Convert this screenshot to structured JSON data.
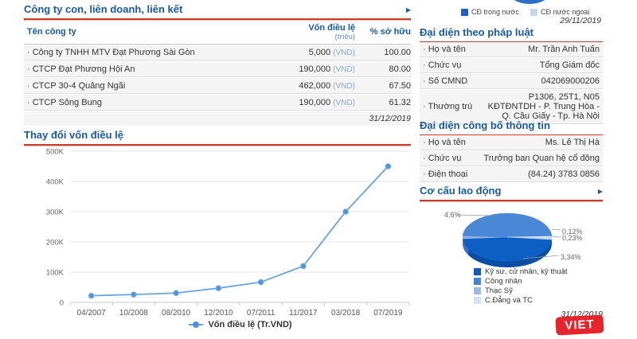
{
  "theme": {
    "accent_blue": "#1a5a9c",
    "accent_red": "#cf3b2a",
    "line_blue": "#68a3dd",
    "row_bg": "#f4f4f4"
  },
  "subsidiaries": {
    "title": "Công ty con, liên doanh, liên kết",
    "columns": {
      "name": "Tên công ty",
      "capital": "Vốn điều lệ",
      "capital_unit": "(triệu)",
      "ownership": "% sở hữu"
    },
    "rows": [
      {
        "name": "Công ty TNHH MTV Đạt Phương Sài Gòn",
        "capital": "5,000",
        "currency": "(VND)",
        "ownership": "100.00"
      },
      {
        "name": "CTCP Đạt Phương Hội An",
        "capital": "190,000",
        "currency": "(VND)",
        "ownership": "80.00"
      },
      {
        "name": "CTCP 30-4 Quảng Ngãi",
        "capital": "462,000",
        "currency": "(VND)",
        "ownership": "67.50"
      },
      {
        "name": "CTCP Sông Bung",
        "capital": "190,000",
        "currency": "(VND)",
        "ownership": "61.32"
      }
    ],
    "as_of_date": "31/12/2019"
  },
  "ownership_legend": {
    "domestic": "CĐ trong nước",
    "foreign": "CĐ nước ngoài",
    "date": "29/11/2019",
    "colors": {
      "domestic": "#1d5fc2",
      "foreign": "#c7d9f0"
    }
  },
  "legal_rep": {
    "title": "Đại diện theo pháp luật",
    "rows": [
      {
        "label": "Họ và tên",
        "value": "Mr. Trần Anh Tuấn"
      },
      {
        "label": "Chức vụ",
        "value": "Tổng Giám đốc"
      },
      {
        "label": "Số CMND",
        "value": "042069000206"
      },
      {
        "label": "Thường trú",
        "value": "P1306, 25T1, N05 KĐTĐNTDH - P. Trung Hòa - Q. Cầu Giấy - Tp. Hà Nội"
      }
    ]
  },
  "disclosure_rep": {
    "title": "Đại diện công bố thông tin",
    "rows": [
      {
        "label": "Họ và tên",
        "value": "Ms. Lê Thị Hà"
      },
      {
        "label": "Chức vụ",
        "value": "Trưởng ban Quan hệ cổ đông"
      },
      {
        "label": "Điện thoại",
        "value": "(84.24) 3783 0856"
      }
    ]
  },
  "labor": {
    "title": "Cơ cấu lao động",
    "as_of_date": "31/12/2019",
    "watermark": "VIET"
  },
  "chart_data": [
    {
      "type": "line",
      "title": "Thay đổi vốn điều lệ",
      "categories": [
        "04/2007",
        "10/2008",
        "08/2010",
        "12/2010",
        "07/2011",
        "11/2017",
        "03/2018",
        "07/2019"
      ],
      "values": [
        22000,
        26000,
        31000,
        47000,
        67000,
        120000,
        300000,
        450000
      ],
      "ylim": [
        0,
        500000
      ],
      "yticks": [
        "0",
        "100K",
        "200K",
        "300K",
        "400K",
        "500K"
      ],
      "legend": "Vốn điều lệ (Tr.VND)",
      "line_color": "#68a3dd",
      "grid": true,
      "legend_position": "bottom"
    },
    {
      "type": "pie",
      "title": "Cơ cấu lao động",
      "legend_entries": [
        {
          "label": "Kỹ sư, cử nhân, kỹ thuật",
          "color": "#1257bd"
        },
        {
          "label": "Công nhân",
          "color": "#4384d4"
        },
        {
          "label": "Thạc Sỹ",
          "color": "#9cbae5"
        },
        {
          "label": "C.Đẳng và TC",
          "color": "#d3e2f5"
        }
      ],
      "callouts": [
        "4,6%",
        "0,12%",
        "0,23%",
        "3,34%"
      ],
      "slices": [
        {
          "color": "#0d5fc3",
          "start": 6,
          "end": 176
        },
        {
          "color": "#8fb3e2",
          "start": 176,
          "end": 183
        },
        {
          "color": "#4a87d5",
          "start": 183,
          "end": 358
        },
        {
          "color": "#eef4fc",
          "start": 358,
          "end": 361
        },
        {
          "color": "#bed5f0",
          "start": 361,
          "end": 366
        }
      ],
      "legend_position": "bottom-left"
    }
  ]
}
